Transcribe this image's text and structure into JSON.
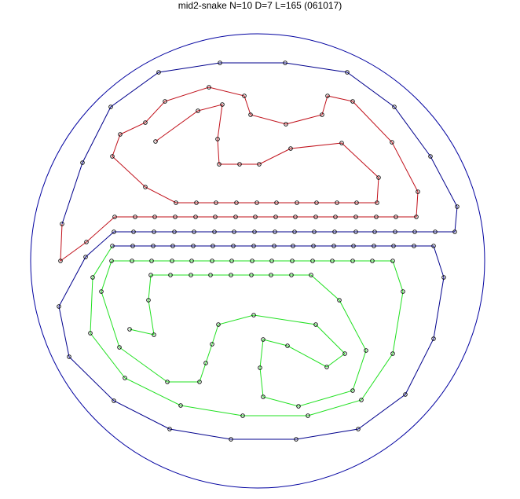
{
  "title": "mid2-snake N=10 D=7 L=165 (061017)",
  "colors": {
    "boundary": "#0000a0",
    "segment_red": "#c0101a",
    "segment_blue": "#00008c",
    "segment_green": "#20e020",
    "marker": "#000000"
  }
}
